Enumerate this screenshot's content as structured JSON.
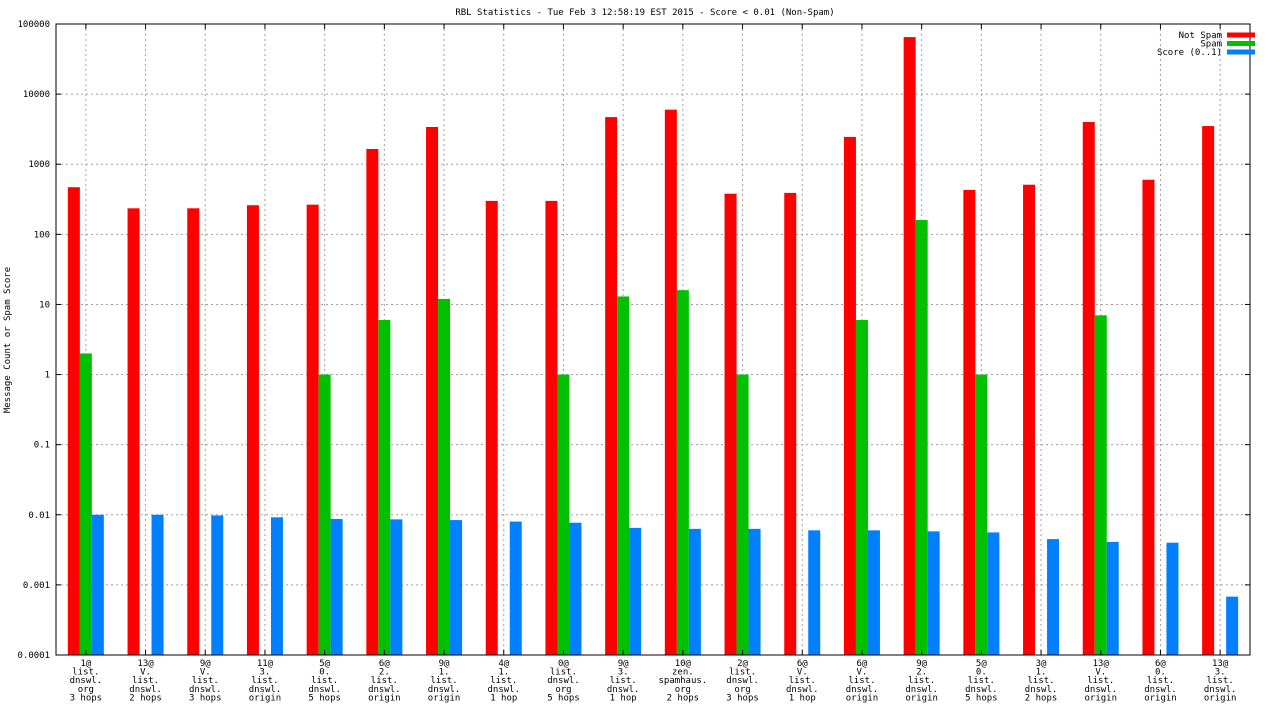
{
  "chart_data": {
    "type": "bar",
    "title": "RBL Statistics - Tue Feb  3 12:58:19 EST 2015 - Score < 0.01 (Non-Spam)",
    "xlabel": "",
    "ylabel": "Message Count or Spam Score",
    "yscale": "log",
    "ylim": [
      0.0001,
      100000
    ],
    "yticks": [
      "0.0001",
      "0.001",
      "0.01",
      "0.1",
      "1",
      "10",
      "100",
      "1000",
      "10000",
      "100000"
    ],
    "grid": true,
    "legend_position": "top-right",
    "categories": [
      [
        "1@",
        "list.",
        "dnswl.",
        "org",
        "3 hops"
      ],
      [
        "13@",
        "V.",
        "list.",
        "dnswl.",
        "2 hops"
      ],
      [
        "9@",
        "V.",
        "list.",
        "dnswl.",
        "3 hops"
      ],
      [
        "11@",
        "3.",
        "list.",
        "dnswl.",
        "origin"
      ],
      [
        "5@",
        "0.",
        "list.",
        "dnswl.",
        "5 hops"
      ],
      [
        "6@",
        "2.",
        "list.",
        "dnswl.",
        "origin"
      ],
      [
        "9@",
        "1.",
        "list.",
        "dnswl.",
        "origin"
      ],
      [
        "4@",
        "1.",
        "list.",
        "dnswl.",
        "1 hop"
      ],
      [
        "0@",
        "list.",
        "dnswl.",
        "org",
        "5 hops"
      ],
      [
        "9@",
        "3.",
        "list.",
        "dnswl.",
        "1 hop"
      ],
      [
        "10@",
        "zen.",
        "spamhaus.",
        "org",
        "2 hops"
      ],
      [
        "2@",
        "list.",
        "dnswl.",
        "org",
        "3 hops"
      ],
      [
        "6@",
        "V.",
        "list.",
        "dnswl.",
        "1 hop"
      ],
      [
        "6@",
        "V.",
        "list.",
        "dnswl.",
        "origin"
      ],
      [
        "9@",
        "2.",
        "list.",
        "dnswl.",
        "origin"
      ],
      [
        "5@",
        "0.",
        "list.",
        "dnswl.",
        "5 hops"
      ],
      [
        "3@",
        "1.",
        "list.",
        "dnswl.",
        "2 hops"
      ],
      [
        "13@",
        "V.",
        "list.",
        "dnswl.",
        "origin"
      ],
      [
        "6@",
        "0.",
        "list.",
        "dnswl.",
        "origin"
      ],
      [
        "13@",
        "3.",
        "list.",
        "dnswl.",
        "origin"
      ]
    ],
    "series": [
      {
        "name": "Not Spam",
        "color": "#ff0000",
        "values": [
          470,
          235,
          235,
          260,
          265,
          1650,
          3400,
          300,
          300,
          4700,
          6000,
          380,
          390,
          2450,
          65000,
          430,
          510,
          4000,
          600,
          3500
        ]
      },
      {
        "name": "Spam",
        "color": "#00c000",
        "values": [
          2,
          null,
          null,
          null,
          1,
          6,
          12,
          null,
          1,
          13,
          16,
          1,
          null,
          6,
          160,
          1,
          null,
          7,
          null,
          null
        ]
      },
      {
        "name": "Score (0..1)",
        "color": "#0080ff",
        "values": [
          0.01,
          0.01,
          0.0098,
          0.0092,
          0.0087,
          0.0086,
          0.0084,
          0.008,
          0.0077,
          0.0065,
          0.0063,
          0.0063,
          0.006,
          0.006,
          0.0058,
          0.0056,
          0.0045,
          0.0041,
          0.004,
          0.00068
        ]
      }
    ]
  }
}
